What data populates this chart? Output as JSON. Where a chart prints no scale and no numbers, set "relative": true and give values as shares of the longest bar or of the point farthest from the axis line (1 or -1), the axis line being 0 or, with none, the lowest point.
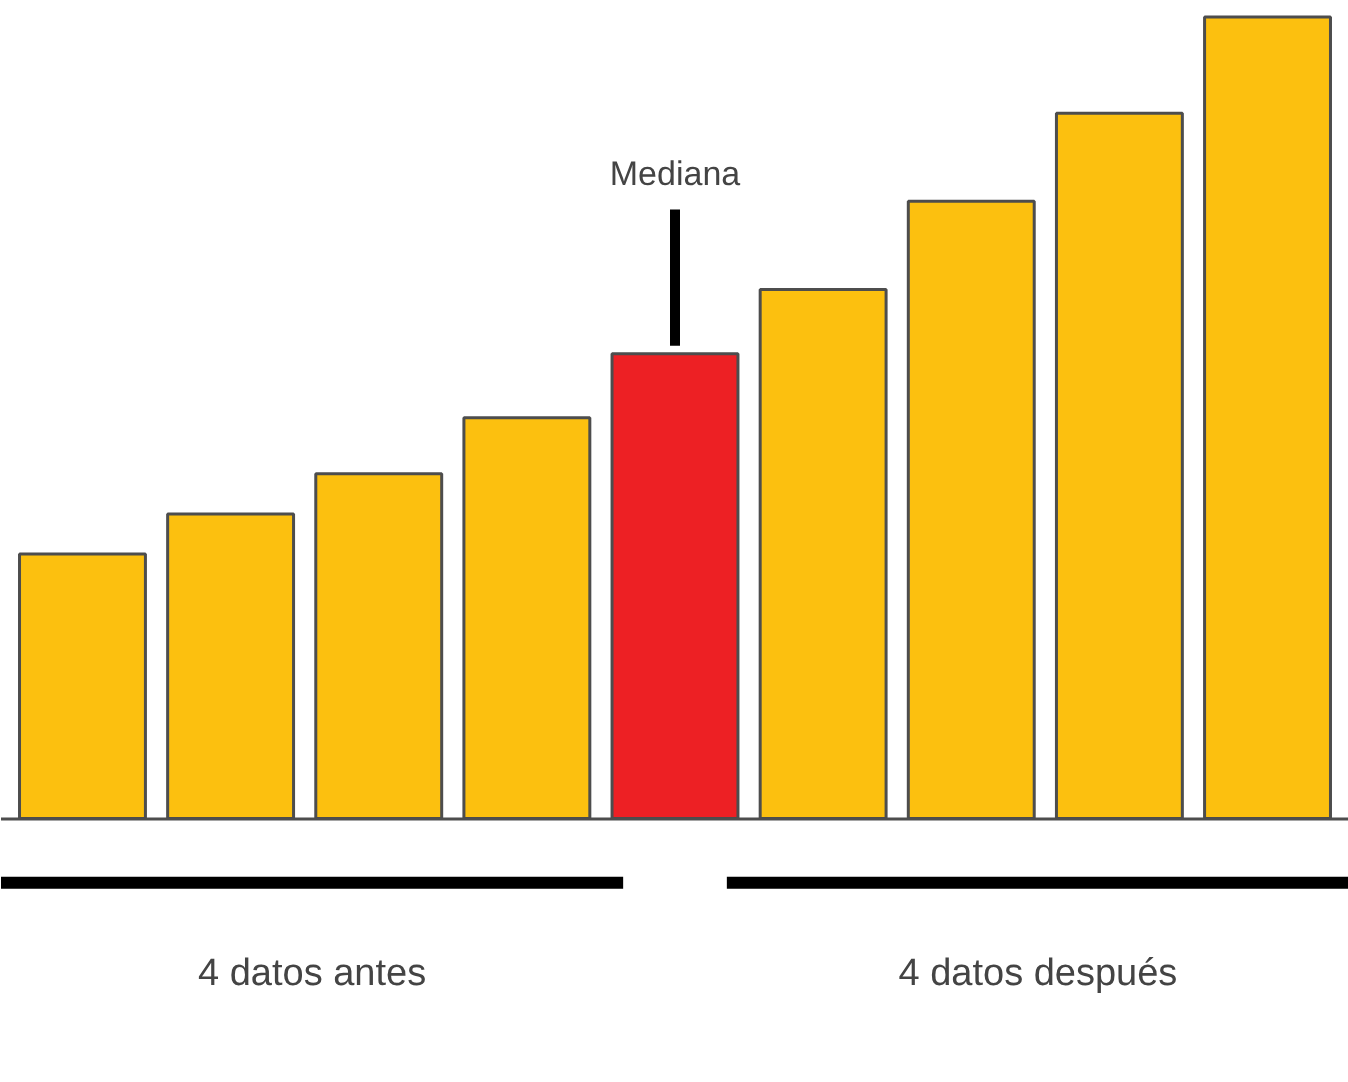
{
  "chart_data": {
    "type": "bar",
    "relative": true,
    "categories": [
      null,
      null,
      null,
      null,
      null,
      null,
      null,
      null,
      null
    ],
    "values": [
      0.33,
      0.38,
      0.43,
      0.5,
      0.58,
      0.66,
      0.77,
      0.88,
      1
    ],
    "colors": [
      "#fcc00f",
      "#fcc00f",
      "#fcc00f",
      "#fcc00f",
      "#ed2024",
      "#fcc00f",
      "#fcc00f",
      "#fcc00f",
      "#fcc00f"
    ],
    "annotations": [
      "Mediana",
      "4 datos antes",
      "4 datos después"
    ],
    "grid": false
  }
}
